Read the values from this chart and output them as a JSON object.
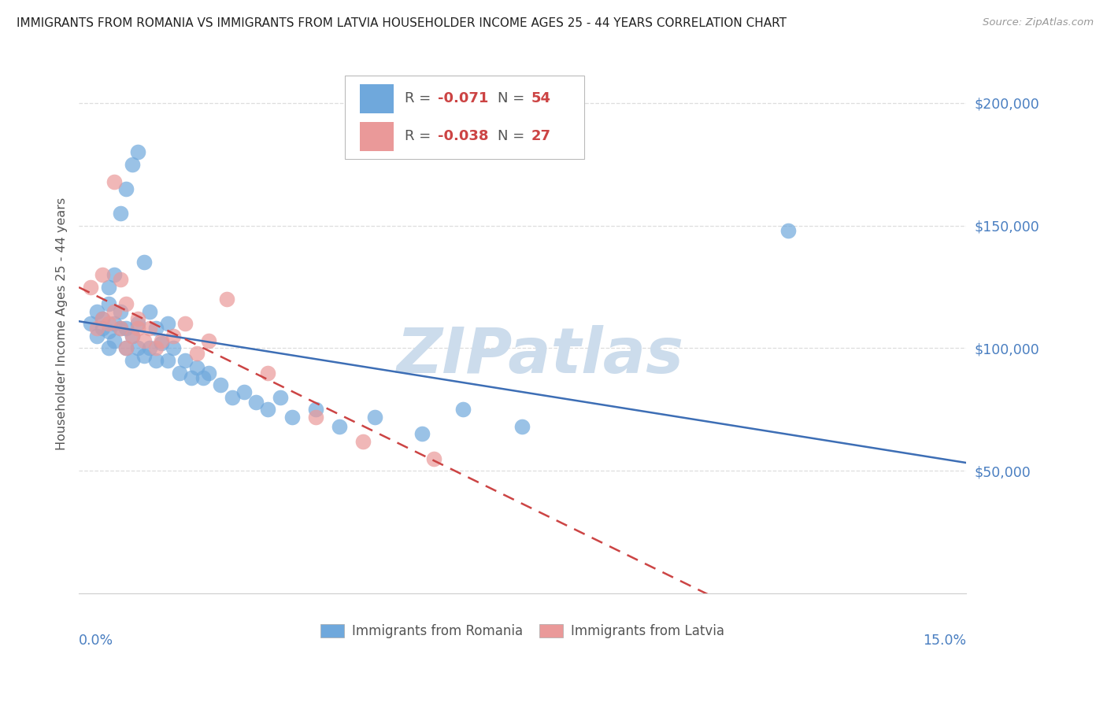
{
  "title": "IMMIGRANTS FROM ROMANIA VS IMMIGRANTS FROM LATVIA HOUSEHOLDER INCOME AGES 25 - 44 YEARS CORRELATION CHART",
  "source": "Source: ZipAtlas.com",
  "ylabel": "Householder Income Ages 25 - 44 years",
  "xlim": [
    0.0,
    0.15
  ],
  "ylim": [
    0,
    220000
  ],
  "romania_color": "#6fa8dc",
  "latvia_color": "#ea9999",
  "trend_romania_color": "#3d6eb5",
  "trend_latvia_color": "#cc4444",
  "watermark": "ZIPatlas",
  "watermark_color": "#ccdcec",
  "romania_r": "-0.071",
  "romania_n": "54",
  "latvia_r": "-0.038",
  "latvia_n": "27",
  "romania_x": [
    0.002,
    0.003,
    0.003,
    0.004,
    0.004,
    0.005,
    0.005,
    0.005,
    0.005,
    0.006,
    0.006,
    0.006,
    0.007,
    0.007,
    0.007,
    0.008,
    0.008,
    0.008,
    0.009,
    0.009,
    0.009,
    0.01,
    0.01,
    0.01,
    0.011,
    0.011,
    0.012,
    0.012,
    0.013,
    0.013,
    0.014,
    0.015,
    0.015,
    0.016,
    0.017,
    0.018,
    0.019,
    0.02,
    0.021,
    0.022,
    0.024,
    0.026,
    0.028,
    0.03,
    0.032,
    0.034,
    0.036,
    0.04,
    0.044,
    0.05,
    0.058,
    0.065,
    0.075,
    0.12
  ],
  "romania_y": [
    110000,
    105000,
    115000,
    108000,
    112000,
    100000,
    107000,
    118000,
    125000,
    103000,
    110000,
    130000,
    108000,
    115000,
    155000,
    100000,
    108000,
    165000,
    95000,
    105000,
    175000,
    100000,
    110000,
    180000,
    97000,
    135000,
    100000,
    115000,
    95000,
    108000,
    102000,
    95000,
    110000,
    100000,
    90000,
    95000,
    88000,
    92000,
    88000,
    90000,
    85000,
    80000,
    82000,
    78000,
    75000,
    80000,
    72000,
    75000,
    68000,
    72000,
    65000,
    75000,
    68000,
    148000
  ],
  "latvia_x": [
    0.002,
    0.003,
    0.004,
    0.004,
    0.005,
    0.006,
    0.006,
    0.007,
    0.007,
    0.008,
    0.008,
    0.009,
    0.01,
    0.01,
    0.011,
    0.012,
    0.013,
    0.014,
    0.016,
    0.018,
    0.02,
    0.022,
    0.025,
    0.032,
    0.04,
    0.048,
    0.06
  ],
  "latvia_y": [
    125000,
    108000,
    112000,
    130000,
    110000,
    168000,
    115000,
    128000,
    108000,
    100000,
    118000,
    105000,
    108000,
    112000,
    103000,
    108000,
    100000,
    103000,
    105000,
    110000,
    98000,
    103000,
    120000,
    90000,
    72000,
    62000,
    55000
  ]
}
